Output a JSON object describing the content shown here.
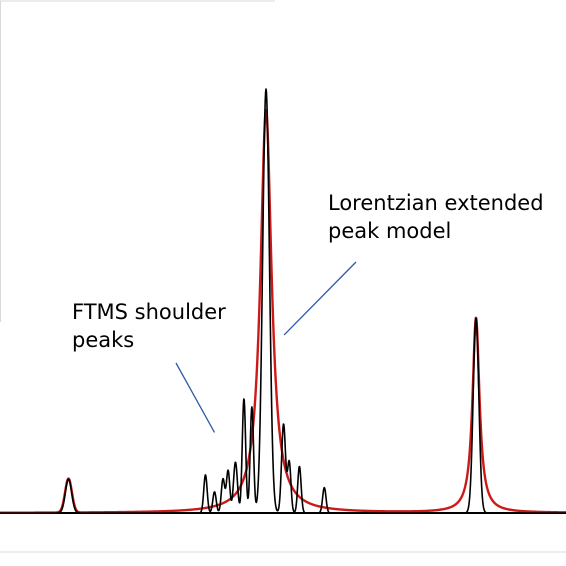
{
  "colors": {
    "spectrum": "#000000",
    "model": "#cc1a1a",
    "annotation_line": "#2e5aa8",
    "frame": "#d9d9d9",
    "baseline": "#000000"
  },
  "chart_data": {
    "type": "line",
    "title": "",
    "xlabel": "",
    "ylabel": "",
    "xlim": [
      0,
      100
    ],
    "ylim": [
      0,
      1
    ],
    "grid": false,
    "legend": "none",
    "series": [
      {
        "key": "spectrum",
        "peaks": [
          {
            "x": 12.1,
            "h": 0.08,
            "w": 0.55
          },
          {
            "x": 36.3,
            "h": 0.09,
            "w": 0.3
          },
          {
            "x": 37.9,
            "h": 0.05,
            "w": 0.3
          },
          {
            "x": 39.4,
            "h": 0.08,
            "w": 0.3
          },
          {
            "x": 40.3,
            "h": 0.1,
            "w": 0.3
          },
          {
            "x": 41.6,
            "h": 0.12,
            "w": 0.35
          },
          {
            "x": 43.1,
            "h": 0.27,
            "w": 0.3
          },
          {
            "x": 44.5,
            "h": 0.25,
            "w": 0.3
          },
          {
            "x": 47.0,
            "h": 1.0,
            "w": 0.6
          },
          {
            "x": 50.1,
            "h": 0.21,
            "w": 0.35
          },
          {
            "x": 51.1,
            "h": 0.12,
            "w": 0.3
          },
          {
            "x": 52.9,
            "h": 0.11,
            "w": 0.3
          },
          {
            "x": 57.3,
            "h": 0.06,
            "w": 0.3
          },
          {
            "x": 84.1,
            "h": 0.46,
            "w": 0.5
          }
        ]
      },
      {
        "key": "model",
        "peaks": [
          {
            "x": 12.1,
            "h": 0.08,
            "w": 0.6,
            "shape": "gaussian"
          },
          {
            "x": 47.0,
            "h": 0.95,
            "gamma": 1.2,
            "shape": "lorentzian"
          },
          {
            "x": 84.1,
            "h": 0.46,
            "gamma": 0.75,
            "shape": "lorentzian"
          }
        ]
      }
    ],
    "annotations": [
      {
        "text": "FTMS shoulder\npeaks",
        "target": {
          "x": 37.9,
          "y": 0.19
        }
      },
      {
        "text": "Lorentzian extended\npeak model",
        "target": {
          "x": 50.2,
          "y": 0.42
        }
      }
    ]
  }
}
